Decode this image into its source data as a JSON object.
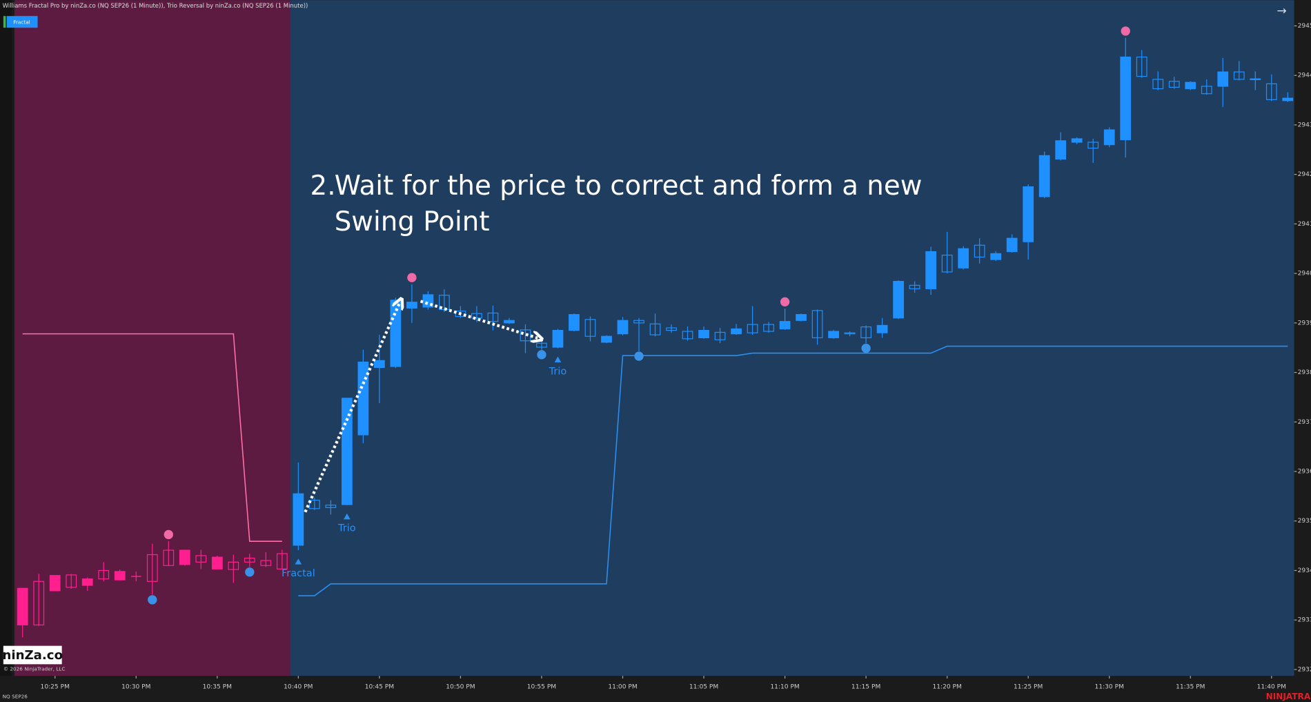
{
  "header_text": "Williams Fractal Pro by ninZa.co (NQ SEP26 (1 Minute)), Trio Reversal by ninZa.co (NQ SEP26 (1 Minute))",
  "indicator_button": "Fractal",
  "logo": "ninZa.co",
  "copyright": "© 2026 NinjaTrader, LLC",
  "instrument": "NQ SEP26",
  "brand": "NINJATRAD",
  "nav_arrow": "→",
  "chart_data": {
    "type": "candlestick",
    "annotation": {
      "number": "2.",
      "lines": [
        "Wait for the price to correct and form a new",
        "Swing Point"
      ]
    },
    "categories": [
      null,
      null,
      "10:25 PM",
      null,
      null,
      null,
      null,
      "10:30 PM",
      null,
      null,
      null,
      null,
      "10:35 PM",
      null,
      null,
      null,
      null,
      "10:40 PM",
      null,
      null,
      null,
      null,
      "10:45 PM",
      null,
      null,
      null,
      null,
      "10:50 PM",
      null,
      null,
      null,
      null,
      "10:55 PM",
      null,
      null,
      null,
      null,
      "11:00 PM",
      null,
      null,
      null,
      null,
      "11:05 PM",
      null,
      null,
      null,
      null,
      "11:10 PM",
      null,
      null,
      null,
      null,
      "11:15 PM",
      null,
      null,
      null,
      null,
      "11:20 PM",
      null,
      null,
      null,
      null,
      "11:25 PM",
      null,
      null,
      null,
      null,
      "11:30 PM",
      null,
      null,
      null,
      null,
      "11:35 PM",
      null,
      null,
      null,
      null,
      "11:40 PM",
      null
    ],
    "open": [
      2932.9,
      2933.78,
      2933.59,
      2933.91,
      2933.7,
      2934.0,
      2933.81,
      2933.88,
      2934.32,
      2934.41,
      2934.12,
      2934.3,
      2934.03,
      2934.17,
      2934.25,
      2934.2,
      2934.34,
      2934.51,
      2935.42,
      2935.32,
      2935.33,
      2936.74,
      2938.1,
      2938.12,
      2939.3,
      2939.32,
      2939.56,
      2939.24,
      2939.19,
      2939.2,
      2939.0,
      2938.86,
      2938.59,
      2938.51,
      2938.85,
      2939.07,
      2938.61,
      2938.78,
      2939.05,
      2938.98,
      2938.9,
      2938.83,
      2938.7,
      2938.81,
      2938.78,
      2938.97,
      2938.97,
      2938.88,
      2939.05,
      2939.25,
      2938.7,
      2938.8,
      2938.92,
      2938.8,
      2939.1,
      2939.76,
      2939.69,
      2940.37,
      2940.11,
      2940.57,
      2940.28,
      2940.44,
      2940.64,
      2941.55,
      2942.31,
      2942.65,
      2942.65,
      2942.6,
      2942.7,
      2944.37,
      2943.92,
      2943.88,
      2943.73,
      2943.78,
      2943.78,
      2944.07,
      2943.93,
      2943.83,
      2943.49
    ],
    "high": [
      2933.64,
      2933.93,
      2933.9,
      2933.93,
      2933.86,
      2934.17,
      2934.02,
      2933.98,
      2934.54,
      2934.59,
      2934.42,
      2934.42,
      2934.3,
      2934.32,
      2934.34,
      2934.37,
      2934.42,
      2936.18,
      2935.47,
      2935.42,
      2937.48,
      2938.46,
      2938.76,
      2939.51,
      2939.78,
      2939.64,
      2939.68,
      2939.34,
      2939.34,
      2939.35,
      2939.1,
      2938.97,
      2938.73,
      2938.88,
      2939.19,
      2939.13,
      2938.75,
      2939.12,
      2939.1,
      2939.19,
      2938.97,
      2938.93,
      2938.93,
      2938.9,
      2938.98,
      2939.34,
      2939.02,
      2939.29,
      2939.19,
      2939.27,
      2938.86,
      2938.83,
      2938.95,
      2939.1,
      2939.86,
      2939.84,
      2940.54,
      2940.84,
      2940.55,
      2940.71,
      2940.45,
      2940.79,
      2941.8,
      2942.46,
      2942.85,
      2942.75,
      2942.72,
      2942.95,
      2944.76,
      2944.51,
      2944.08,
      2943.97,
      2943.88,
      2943.92,
      2944.35,
      2944.29,
      2944.08,
      2944.02,
      2943.66
    ],
    "low": [
      2932.65,
      2932.88,
      2933.59,
      2933.63,
      2933.59,
      2933.78,
      2933.8,
      2933.78,
      2933.51,
      2934.1,
      2934.1,
      2934.03,
      2934.02,
      2933.75,
      2934.07,
      2934.07,
      2934.02,
      2934.41,
      2935.22,
      2935.13,
      2935.32,
      2936.57,
      2937.38,
      2938.09,
      2939.0,
      2939.27,
      2939.22,
      2939.1,
      2939.02,
      2938.85,
      2938.98,
      2938.39,
      2938.46,
      2938.49,
      2938.83,
      2938.63,
      2938.59,
      2938.75,
      2938.43,
      2938.73,
      2938.8,
      2938.64,
      2938.68,
      2938.59,
      2938.76,
      2938.76,
      2938.8,
      2938.86,
      2939.03,
      2938.56,
      2938.68,
      2938.73,
      2938.59,
      2938.7,
      2939.08,
      2939.61,
      2939.57,
      2940.0,
      2940.08,
      2940.2,
      2940.25,
      2940.42,
      2940.28,
      2941.52,
      2942.28,
      2942.61,
      2942.23,
      2942.55,
      2942.34,
      2943.95,
      2943.7,
      2943.73,
      2943.7,
      2943.61,
      2943.36,
      2943.9,
      2943.7,
      2943.48,
      2943.46
    ],
    "close": [
      2933.64,
      2932.9,
      2933.9,
      2933.66,
      2933.83,
      2933.83,
      2933.98,
      2933.88,
      2933.78,
      2934.1,
      2934.41,
      2934.17,
      2934.27,
      2934.02,
      2934.17,
      2934.1,
      2934.03,
      2935.55,
      2935.25,
      2935.27,
      2937.48,
      2938.21,
      2938.24,
      2939.46,
      2939.42,
      2939.57,
      2939.27,
      2939.13,
      2939.1,
      2939.03,
      2939.05,
      2938.64,
      2938.51,
      2938.85,
      2939.17,
      2938.73,
      2938.73,
      2939.05,
      2939.0,
      2938.76,
      2938.85,
      2938.68,
      2938.85,
      2938.66,
      2938.88,
      2938.8,
      2938.83,
      2939.03,
      2939.17,
      2938.7,
      2938.83,
      2938.78,
      2938.7,
      2938.95,
      2939.84,
      2939.69,
      2940.44,
      2940.03,
      2940.5,
      2940.33,
      2940.4,
      2940.71,
      2941.75,
      2942.38,
      2942.68,
      2942.72,
      2942.53,
      2942.9,
      2944.37,
      2943.98,
      2943.73,
      2943.76,
      2943.86,
      2943.63,
      2944.07,
      2943.92,
      2943.92,
      2943.51,
      2943.54
    ],
    "trend_segments": [
      {
        "start": 0,
        "end": 16,
        "background": "#5e1b41",
        "candle_color": "#ff1f8f"
      },
      {
        "start": 17,
        "end": 78,
        "background": "#1f3d5f",
        "candle_color": "#1e90ff"
      }
    ],
    "lines": [
      {
        "color": "#ff6fa8",
        "values": [
          2938.78,
          2938.78,
          2938.78,
          2938.78,
          2938.78,
          2938.78,
          2938.78,
          2938.78,
          2938.78,
          2938.78,
          2938.78,
          2938.78,
          2938.78,
          2938.78,
          2934.59,
          2934.59,
          2934.59,
          null,
          null,
          null,
          null,
          null,
          null,
          null,
          null,
          null,
          null,
          null,
          null,
          null,
          null,
          null,
          null,
          null,
          null,
          null,
          null,
          null,
          null,
          null,
          null,
          null,
          null,
          null,
          null,
          null,
          null,
          null,
          null,
          null,
          null,
          null,
          null,
          null,
          null,
          null,
          null,
          null,
          null,
          null,
          null,
          null,
          null,
          null,
          null,
          null,
          null,
          null,
          null,
          null,
          null,
          null,
          null,
          null,
          null,
          null,
          null,
          null,
          null
        ]
      },
      {
        "color": "#2b8ff0",
        "values": [
          null,
          null,
          null,
          null,
          null,
          null,
          null,
          null,
          null,
          null,
          null,
          null,
          null,
          null,
          null,
          null,
          null,
          2933.49,
          2933.49,
          2933.73,
          2933.73,
          2933.73,
          2933.73,
          2933.73,
          2933.73,
          2933.73,
          2933.73,
          2933.73,
          2933.73,
          2933.73,
          2933.73,
          2933.73,
          2933.73,
          2933.73,
          2933.73,
          2933.73,
          2933.73,
          2938.34,
          2938.34,
          2938.34,
          2938.34,
          2938.34,
          2938.34,
          2938.34,
          2938.34,
          2938.39,
          2938.39,
          2938.39,
          2938.39,
          2938.39,
          2938.39,
          2938.39,
          2938.39,
          2938.39,
          2938.39,
          2938.39,
          2938.39,
          2938.53,
          2938.53,
          2938.53,
          2938.53,
          2938.53,
          2938.53,
          2938.53,
          2938.53,
          2938.53,
          2938.53,
          2938.53,
          2938.53,
          2938.53,
          2938.53,
          2938.53,
          2938.53,
          2938.53,
          2938.53,
          2938.53,
          2938.53,
          2938.53,
          2938.53
        ]
      }
    ],
    "fractal_markers": {
      "high_color": "#f06aa8",
      "low_color": "#3a92e8",
      "highs": [
        9,
        24,
        47,
        68
      ],
      "lows": [
        8,
        14,
        32,
        38,
        52
      ]
    },
    "signals": [
      {
        "index": 17,
        "label": "Fractal"
      },
      {
        "index": 20,
        "label": "Trio"
      },
      {
        "index": 33,
        "label": "Trio"
      }
    ],
    "signal_color": "#2f8fef",
    "ylim": [
      2931.87,
      2945.52
    ],
    "yticks": [
      2932,
      2933,
      2934,
      2935,
      2936,
      2937,
      2938,
      2939,
      2940,
      2941,
      2942,
      2943,
      2944,
      2945
    ]
  }
}
